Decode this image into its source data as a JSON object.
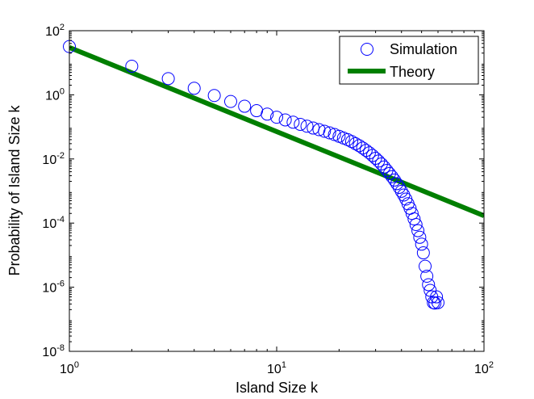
{
  "chart_data": {
    "type": "scatter",
    "xlabel": "Island Size k",
    "ylabel": "Probability of Island Size k",
    "xscale": "log",
    "yscale": "log",
    "xlim": [
      1,
      100
    ],
    "ylim": [
      1e-08,
      100
    ],
    "x_ticks": [
      {
        "base": "10",
        "exp": "0"
      },
      {
        "base": "10",
        "exp": "1"
      },
      {
        "base": "10",
        "exp": "2"
      }
    ],
    "y_ticks": [
      {
        "base": "10",
        "exp": "-8"
      },
      {
        "base": "10",
        "exp": "-6"
      },
      {
        "base": "10",
        "exp": "-4"
      },
      {
        "base": "10",
        "exp": "-2"
      },
      {
        "base": "10",
        "exp": "0"
      },
      {
        "base": "10",
        "exp": "2"
      }
    ],
    "grid": false,
    "legend_position": "top-right",
    "colors": {
      "simulation": "#0000ff",
      "theory": "#007f00"
    },
    "series": [
      {
        "name": "Simulation",
        "kind": "markers",
        "marker": "open-circle",
        "points": [
          [
            1,
            32
          ],
          [
            2,
            7.8
          ],
          [
            3,
            3.2
          ],
          [
            4,
            1.6
          ],
          [
            5,
            0.95
          ],
          [
            6,
            0.62
          ],
          [
            7,
            0.44
          ],
          [
            8,
            0.32
          ],
          [
            9,
            0.25
          ],
          [
            10,
            0.2
          ],
          [
            11,
            0.165
          ],
          [
            12,
            0.14
          ],
          [
            13,
            0.12
          ],
          [
            14,
            0.105
          ],
          [
            15,
            0.092
          ],
          [
            16,
            0.082
          ],
          [
            17,
            0.073
          ],
          [
            18,
            0.065
          ],
          [
            19,
            0.058
          ],
          [
            20,
            0.051
          ],
          [
            21,
            0.045
          ],
          [
            22,
            0.04
          ],
          [
            23,
            0.035
          ],
          [
            24,
            0.03
          ],
          [
            25,
            0.026
          ],
          [
            26,
            0.022
          ],
          [
            27,
            0.0185
          ],
          [
            28,
            0.0155
          ],
          [
            29,
            0.0128
          ],
          [
            30,
            0.0105
          ],
          [
            31,
            0.0086
          ],
          [
            32,
            0.007
          ],
          [
            33,
            0.0056
          ],
          [
            34,
            0.0044
          ],
          [
            35,
            0.0035
          ],
          [
            36,
            0.0028
          ],
          [
            37,
            0.0022
          ],
          [
            38,
            0.0017
          ],
          [
            39,
            0.0013
          ],
          [
            40,
            0.00098
          ],
          [
            41,
            0.00075
          ],
          [
            42,
            0.00056
          ],
          [
            43,
            0.0004
          ],
          [
            44,
            0.00029
          ],
          [
            45,
            0.0002
          ],
          [
            46,
            0.000135
          ],
          [
            47,
            9e-05
          ],
          [
            48,
            5.8e-05
          ],
          [
            49,
            3.6e-05
          ],
          [
            50,
            2.2e-05
          ],
          [
            51,
            1.18e-05
          ],
          [
            52,
            4.5e-06
          ],
          [
            53,
            2.2e-06
          ],
          [
            54,
            1.2e-06
          ],
          [
            55,
            8e-07
          ],
          [
            56,
            5e-07
          ],
          [
            57,
            3.3e-07
          ],
          [
            58,
            3.2e-07
          ],
          [
            59,
            5e-07
          ],
          [
            60,
            3.3e-07
          ]
        ]
      },
      {
        "name": "Theory",
        "kind": "line",
        "points": [
          [
            1,
            30
          ],
          [
            100,
            0.00017
          ]
        ]
      }
    ]
  }
}
